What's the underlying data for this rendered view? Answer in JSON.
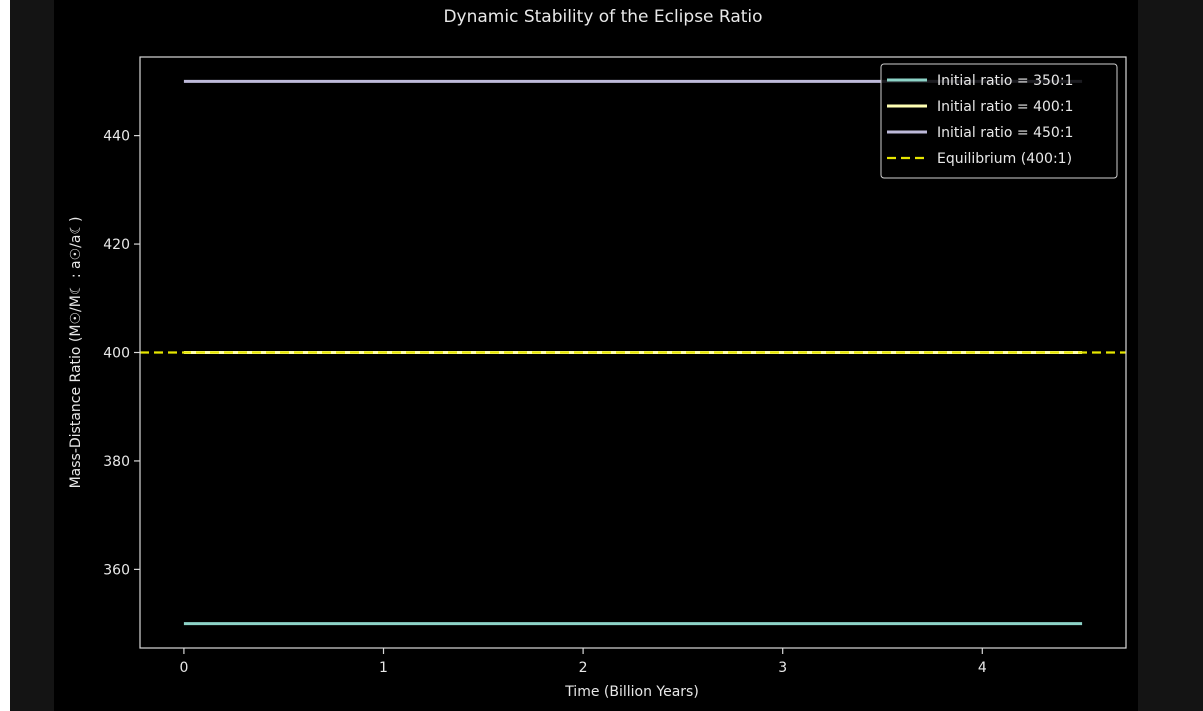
{
  "chart_data": {
    "type": "line",
    "title": "Dynamic Stability of the Eclipse Ratio",
    "xlabel": "Time (Billion Years)",
    "ylabel": "Mass-Distance Ratio (M☉/M☾ : a☉/a☾)",
    "xlim": [
      -0.22,
      4.72
    ],
    "ylim": [
      345.5,
      454.5
    ],
    "xticks": [
      0,
      1,
      2,
      3,
      4
    ],
    "yticks": [
      360,
      380,
      400,
      420,
      440
    ],
    "grid": false,
    "legend_position": "top-right",
    "background": "#000000",
    "series": [
      {
        "name": "Initial ratio = 350:1",
        "color": "#8dd3c7",
        "style": "solid",
        "x": [
          0,
          4.5
        ],
        "y": [
          350,
          350
        ]
      },
      {
        "name": "Initial ratio = 400:1",
        "color": "#ffffb3",
        "style": "solid",
        "x": [
          0,
          4.5
        ],
        "y": [
          400,
          400
        ]
      },
      {
        "name": "Initial ratio = 450:1",
        "color": "#bebada",
        "style": "solid",
        "x": [
          0,
          4.5
        ],
        "y": [
          450,
          450
        ]
      },
      {
        "name": "Equilibrium (400:1)",
        "color": "#e6e600",
        "style": "dashed",
        "type": "hline",
        "y": 400
      }
    ]
  }
}
